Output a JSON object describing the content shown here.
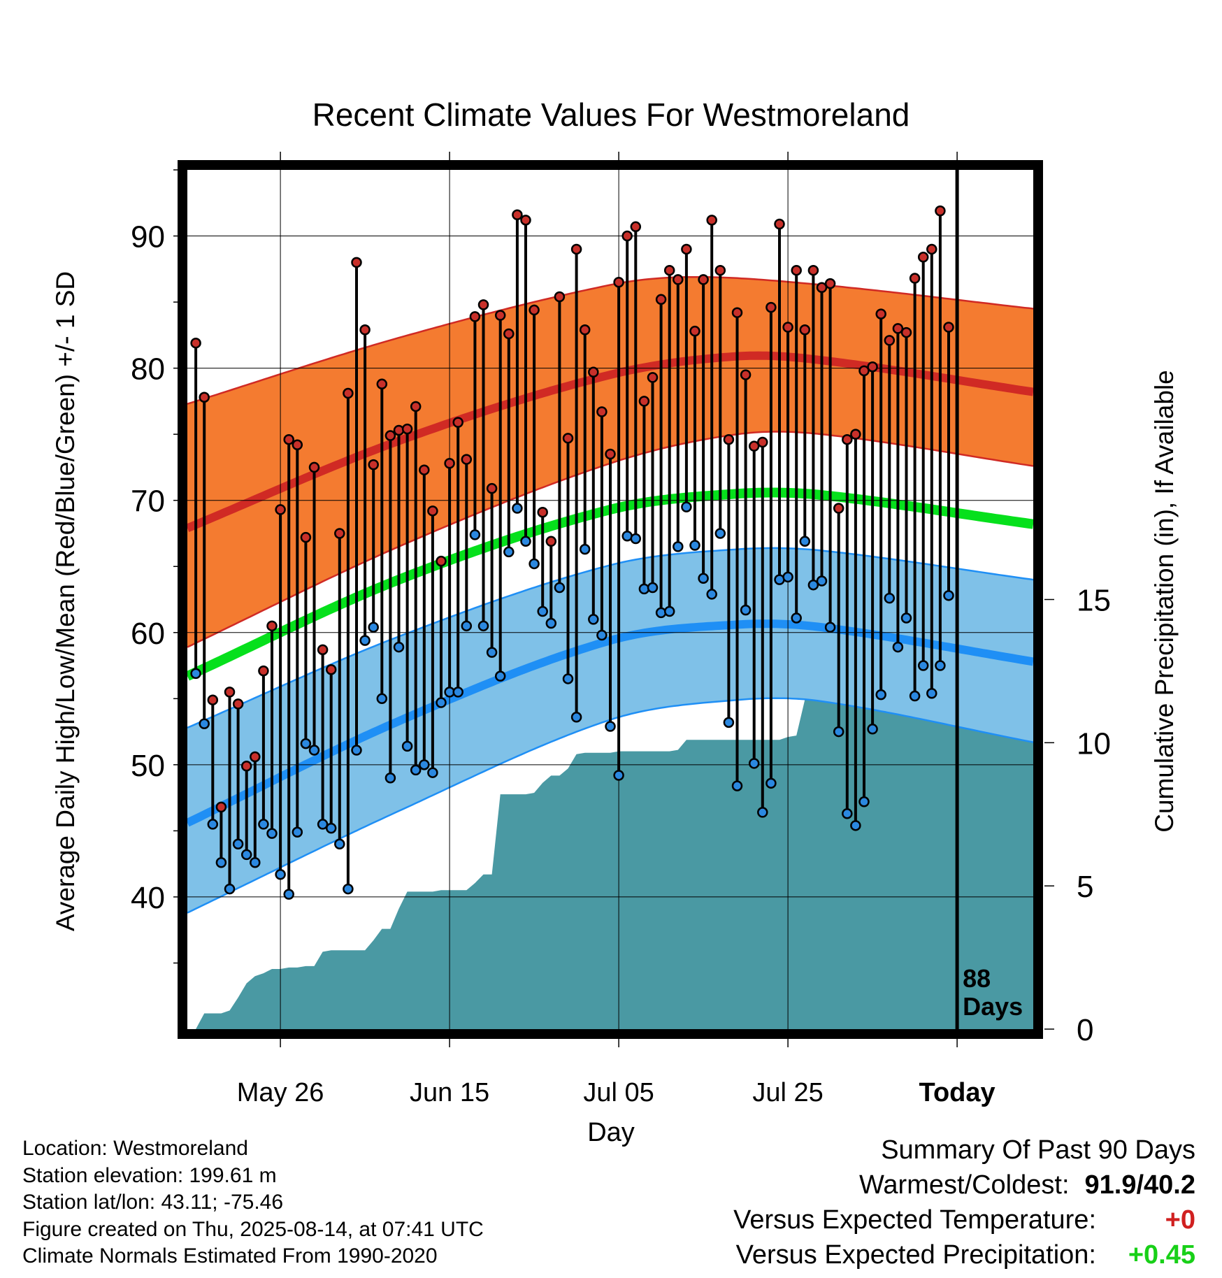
{
  "chart_data": {
    "type": "line",
    "title": "Recent Climate Values For Westmoreland",
    "xlabel": "Day",
    "ylabel_left": "Average Daily High/Low/Mean (Red/Blue/Green) +/- 1 SD",
    "ylabel_right": "Cumulative Precipitation (in), If Available",
    "x_tick_labels": [
      "May 26",
      "Jun 15",
      "Jul 05",
      "Jul 25",
      "Today"
    ],
    "x_tick_days": [
      11,
      31,
      51,
      71,
      91
    ],
    "xlim": [
      0,
      100
    ],
    "ylim": [
      30,
      95
    ],
    "y_ticks": [
      40,
      50,
      60,
      70,
      80,
      90
    ],
    "y2_ticks": [
      0,
      5,
      10,
      15
    ],
    "y2lim": [
      0,
      30
    ],
    "today_label": "88\nDays",
    "today_line_day": 91,
    "normal_high_mean": [
      [
        0,
        67.9
      ],
      [
        25,
        74.5
      ],
      [
        50,
        79.5
      ],
      [
        65,
        80.9
      ],
      [
        75,
        80.6
      ],
      [
        100,
        78.2
      ]
    ],
    "normal_high_upper": [
      [
        0,
        77.3
      ],
      [
        25,
        82.3
      ],
      [
        50,
        86.3
      ],
      [
        60,
        86.9
      ],
      [
        75,
        86.3
      ],
      [
        100,
        84.5
      ]
    ],
    "normal_high_lower": [
      [
        0,
        58.9
      ],
      [
        25,
        66.5
      ],
      [
        50,
        72.8
      ],
      [
        65,
        75.0
      ],
      [
        75,
        75.0
      ],
      [
        100,
        72.6
      ]
    ],
    "normal_mean": [
      [
        0,
        56.7
      ],
      [
        25,
        64.0
      ],
      [
        50,
        69.3
      ],
      [
        65,
        70.5
      ],
      [
        75,
        70.4
      ],
      [
        100,
        68.2
      ]
    ],
    "normal_low_mean": [
      [
        0,
        45.6
      ],
      [
        25,
        53.3
      ],
      [
        50,
        59.4
      ],
      [
        65,
        60.6
      ],
      [
        75,
        60.4
      ],
      [
        100,
        57.8
      ]
    ],
    "normal_low_upper": [
      [
        0,
        52.8
      ],
      [
        25,
        59.7
      ],
      [
        50,
        65.1
      ],
      [
        65,
        66.3
      ],
      [
        75,
        66.2
      ],
      [
        100,
        64.0
      ]
    ],
    "normal_low_lower": [
      [
        0,
        38.8
      ],
      [
        25,
        46.5
      ],
      [
        50,
        53.4
      ],
      [
        65,
        54.9
      ],
      [
        75,
        54.8
      ],
      [
        100,
        51.7
      ]
    ],
    "daily_high": [
      81.9,
      77.8,
      54.9,
      46.8,
      55.5,
      54.6,
      49.9,
      50.6,
      57.1,
      60.5,
      69.3,
      74.6,
      74.2,
      67.2,
      72.5,
      58.7,
      57.2,
      67.5,
      78.1,
      88.0,
      82.9,
      72.7,
      78.8,
      74.9,
      75.3,
      75.4,
      77.1,
      72.3,
      69.2,
      65.4,
      72.8,
      75.9,
      73.1,
      83.9,
      84.8,
      70.9,
      84.0,
      82.6,
      91.6,
      91.2,
      84.4,
      69.1,
      66.9,
      85.4,
      74.7,
      89.0,
      82.9,
      79.7,
      76.7,
      73.5,
      86.5,
      90.0,
      90.7,
      77.5,
      79.3,
      85.2,
      87.4,
      86.7,
      89.0,
      82.8,
      86.7,
      91.2,
      87.4,
      74.6,
      84.2,
      79.5,
      74.1,
      74.4,
      84.6,
      90.9,
      83.1,
      87.4,
      82.9,
      87.4,
      86.1,
      86.4,
      69.4,
      74.6,
      75.0,
      79.8,
      80.1,
      84.1,
      82.1,
      83.0,
      82.7,
      86.8,
      88.4,
      89.0,
      91.9,
      83.1
    ],
    "daily_low": [
      56.9,
      53.1,
      45.5,
      42.6,
      40.6,
      44.0,
      43.2,
      42.6,
      45.5,
      44.8,
      41.7,
      40.2,
      44.9,
      51.6,
      51.1,
      45.5,
      45.2,
      44.0,
      40.6,
      51.1,
      59.4,
      60.4,
      55.0,
      49.0,
      58.9,
      51.4,
      49.6,
      50.0,
      49.4,
      54.7,
      55.5,
      55.5,
      60.5,
      67.4,
      60.5,
      58.5,
      56.7,
      66.1,
      69.4,
      66.9,
      65.2,
      61.6,
      60.7,
      63.4,
      56.5,
      53.6,
      66.3,
      61.0,
      59.8,
      52.9,
      49.2,
      67.3,
      67.1,
      63.3,
      63.4,
      61.5,
      61.6,
      66.5,
      69.5,
      66.6,
      64.1,
      62.9,
      67.5,
      53.2,
      48.4,
      61.7,
      50.1,
      46.4,
      48.6,
      64.0,
      64.2,
      61.1,
      66.9,
      63.6,
      63.9,
      60.4,
      52.5,
      46.3,
      45.4,
      47.2,
      52.7,
      55.3,
      62.6,
      58.9,
      61.1,
      55.2,
      57.5,
      55.4,
      57.5,
      62.8
    ],
    "cumulative_precip": [
      [
        1,
        0.0
      ],
      [
        2,
        0.55
      ],
      [
        3,
        0.55
      ],
      [
        4,
        0.55
      ],
      [
        5,
        0.65
      ],
      [
        6,
        1.1
      ],
      [
        7,
        1.6
      ],
      [
        8,
        1.85
      ],
      [
        9,
        1.95
      ],
      [
        10,
        2.1
      ],
      [
        11,
        2.1
      ],
      [
        12,
        2.15
      ],
      [
        13,
        2.15
      ],
      [
        14,
        2.2
      ],
      [
        15,
        2.2
      ],
      [
        16,
        2.7
      ],
      [
        17,
        2.75
      ],
      [
        18,
        2.75
      ],
      [
        19,
        2.75
      ],
      [
        20,
        2.75
      ],
      [
        21,
        2.75
      ],
      [
        22,
        3.1
      ],
      [
        23,
        3.5
      ],
      [
        24,
        3.5
      ],
      [
        25,
        4.2
      ],
      [
        26,
        4.8
      ],
      [
        27,
        4.8
      ],
      [
        28,
        4.8
      ],
      [
        29,
        4.8
      ],
      [
        30,
        4.85
      ],
      [
        31,
        4.85
      ],
      [
        32,
        4.85
      ],
      [
        33,
        4.85
      ],
      [
        34,
        5.1
      ],
      [
        35,
        5.4
      ],
      [
        36,
        5.4
      ],
      [
        37,
        8.2
      ],
      [
        38,
        8.2
      ],
      [
        39,
        8.2
      ],
      [
        40,
        8.2
      ],
      [
        41,
        8.25
      ],
      [
        42,
        8.6
      ],
      [
        43,
        8.85
      ],
      [
        44,
        8.85
      ],
      [
        45,
        9.1
      ],
      [
        46,
        9.6
      ],
      [
        47,
        9.65
      ],
      [
        48,
        9.65
      ],
      [
        49,
        9.65
      ],
      [
        50,
        9.65
      ],
      [
        51,
        9.7
      ],
      [
        52,
        9.7
      ],
      [
        53,
        9.7
      ],
      [
        54,
        9.7
      ],
      [
        55,
        9.7
      ],
      [
        56,
        9.7
      ],
      [
        57,
        9.7
      ],
      [
        58,
        9.75
      ],
      [
        59,
        10.1
      ],
      [
        60,
        10.1
      ],
      [
        61,
        10.1
      ],
      [
        62,
        10.1
      ],
      [
        63,
        10.1
      ],
      [
        64,
        10.1
      ],
      [
        65,
        10.1
      ],
      [
        66,
        10.1
      ],
      [
        67,
        10.1
      ],
      [
        68,
        10.1
      ],
      [
        69,
        10.1
      ],
      [
        70,
        10.1
      ],
      [
        71,
        10.2
      ],
      [
        72,
        10.25
      ],
      [
        73,
        11.5
      ],
      [
        74,
        11.5
      ],
      [
        75,
        11.5
      ],
      [
        76,
        11.5
      ],
      [
        77,
        11.55
      ],
      [
        78,
        12.0
      ],
      [
        79,
        12.2
      ],
      [
        80,
        12.2
      ],
      [
        81,
        12.2
      ],
      [
        82,
        12.2
      ],
      [
        83,
        12.2
      ],
      [
        84,
        12.2
      ],
      [
        85,
        12.2
      ],
      [
        86,
        12.2
      ],
      [
        87,
        12.2
      ],
      [
        88,
        12.2
      ],
      [
        89,
        12.2
      ],
      [
        90,
        12.2
      ],
      [
        91,
        12.2
      ],
      [
        100,
        12.2
      ]
    ],
    "colors": {
      "high_band": "#f47b30",
      "high_line": "#d02a24",
      "mean_line": "#06e01c",
      "low_band": "#7fc1e8",
      "low_line": "#1f8ff5",
      "precip_fill": "#4a99a3",
      "high_marker": "#c8302a",
      "low_marker": "#2b88e0"
    }
  },
  "info": {
    "location": "Location: Westmoreland",
    "elevation": "Station elevation: 199.61 m",
    "latlon": "Station lat/lon: 43.11; -75.46",
    "created": "Figure created on Thu, 2025-08-14, at 07:41 UTC",
    "normals": "Climate Normals Estimated From 1990-2020"
  },
  "summary": {
    "title": "Summary Of Past 90 Days",
    "warm_cold_label": "Warmest/Coldest:",
    "warm_cold_value": "91.9/40.2",
    "temp_label": "Versus Expected Temperature:",
    "temp_value": "+0",
    "temp_color": "#d02020",
    "precip_label": "Versus Expected Precipitation:",
    "precip_value": "+0.45",
    "precip_color": "#18d018"
  }
}
